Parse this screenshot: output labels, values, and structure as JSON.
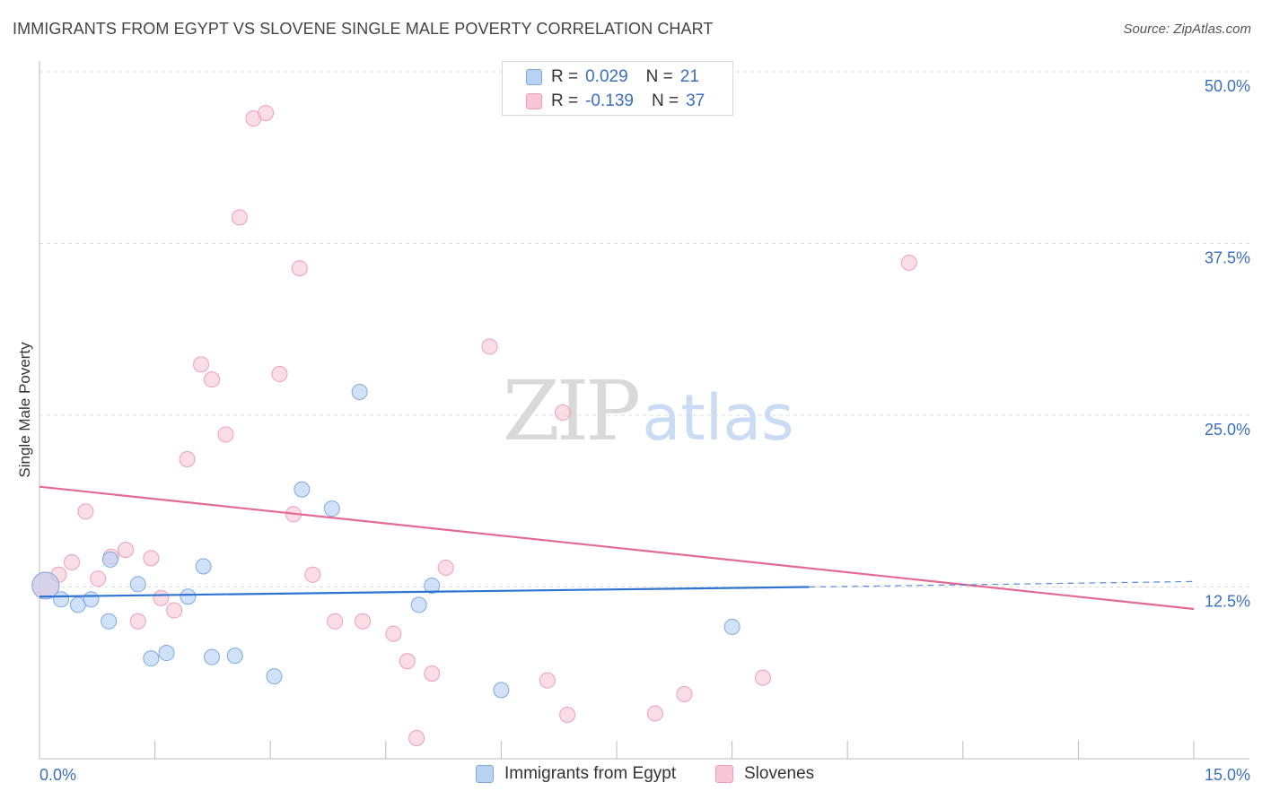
{
  "header": {
    "title": "IMMIGRANTS FROM EGYPT VS SLOVENE SINGLE MALE POVERTY CORRELATION CHART",
    "source": "Source: ZipAtlas.com"
  },
  "legend_top": {
    "rows": [
      {
        "r_label": "R =",
        "r_value": "0.029",
        "n_label": "N =",
        "n_value": "21"
      },
      {
        "r_label": "R =",
        "r_value": "-0.139",
        "n_label": "N =",
        "n_value": "37"
      }
    ]
  },
  "legend_bottom": {
    "items": [
      "Immigrants from Egypt",
      "Slovenes"
    ]
  },
  "watermark": {
    "zip": "ZIP",
    "atlas": "atlas"
  },
  "colors": {
    "egypt_fill": "#b8d2f4",
    "egypt_stroke": "#7fa9e0",
    "egypt_line": "#2f74d0",
    "slovene_fill": "#f8c6d6",
    "slovene_stroke": "#ee9fb8",
    "slovene_line": "#e46a94",
    "tick_label": "#3a6fc0",
    "grid": "#dddddd"
  },
  "chart_data": {
    "type": "scatter",
    "ylabel": "Single Male Poverty",
    "xlim": [
      0,
      15
    ],
    "ylim": [
      0,
      50
    ],
    "x_tick_labels": [
      {
        "value": 0,
        "label": "0.0%"
      },
      {
        "value": 15,
        "label": "15.0%"
      }
    ],
    "y_tick_labels": [
      {
        "value": 12.5,
        "label": "12.5%"
      },
      {
        "value": 25,
        "label": "25.0%"
      },
      {
        "value": 37.5,
        "label": "37.5%"
      },
      {
        "value": 50,
        "label": "50.0%"
      }
    ],
    "grid": true,
    "legend_placement": "top-center",
    "series": [
      {
        "name": "Immigrants from Egypt",
        "points": [
          {
            "x": 0.08,
            "y": 12.6,
            "big": true
          },
          {
            "x": 0.28,
            "y": 11.6
          },
          {
            "x": 0.5,
            "y": 11.2
          },
          {
            "x": 0.67,
            "y": 11.6
          },
          {
            "x": 0.9,
            "y": 10.0
          },
          {
            "x": 0.92,
            "y": 14.5
          },
          {
            "x": 1.28,
            "y": 12.7
          },
          {
            "x": 1.45,
            "y": 7.3
          },
          {
            "x": 1.65,
            "y": 7.7
          },
          {
            "x": 1.93,
            "y": 11.8
          },
          {
            "x": 2.13,
            "y": 14.0
          },
          {
            "x": 2.24,
            "y": 7.4
          },
          {
            "x": 2.54,
            "y": 7.5
          },
          {
            "x": 3.05,
            "y": 6.0
          },
          {
            "x": 3.41,
            "y": 19.6
          },
          {
            "x": 3.8,
            "y": 18.2
          },
          {
            "x": 4.16,
            "y": 26.7
          },
          {
            "x": 4.93,
            "y": 11.2
          },
          {
            "x": 5.1,
            "y": 12.6
          },
          {
            "x": 6.0,
            "y": 5.0
          },
          {
            "x": 9.0,
            "y": 9.6
          }
        ],
        "trend": {
          "x0": 0,
          "y0": 11.8,
          "x1": 10.0,
          "y1": 12.5,
          "dash_to_x": 15.0,
          "dash_to_y": 12.9
        }
      },
      {
        "name": "Slovenes",
        "points": [
          {
            "x": 0.08,
            "y": 12.6,
            "big": true
          },
          {
            "x": 0.25,
            "y": 13.4
          },
          {
            "x": 0.42,
            "y": 14.3
          },
          {
            "x": 0.6,
            "y": 18.0
          },
          {
            "x": 0.76,
            "y": 13.1
          },
          {
            "x": 0.93,
            "y": 14.7
          },
          {
            "x": 1.12,
            "y": 15.2
          },
          {
            "x": 1.28,
            "y": 10.0
          },
          {
            "x": 1.45,
            "y": 14.6
          },
          {
            "x": 1.58,
            "y": 11.7
          },
          {
            "x": 1.75,
            "y": 10.8
          },
          {
            "x": 1.92,
            "y": 21.8
          },
          {
            "x": 2.1,
            "y": 28.7
          },
          {
            "x": 2.24,
            "y": 27.6
          },
          {
            "x": 2.42,
            "y": 23.6
          },
          {
            "x": 2.6,
            "y": 39.4
          },
          {
            "x": 2.78,
            "y": 46.6
          },
          {
            "x": 2.94,
            "y": 47.0
          },
          {
            "x": 3.12,
            "y": 28.0
          },
          {
            "x": 3.3,
            "y": 17.8
          },
          {
            "x": 3.38,
            "y": 35.7
          },
          {
            "x": 3.55,
            "y": 13.4
          },
          {
            "x": 3.84,
            "y": 10.0
          },
          {
            "x": 4.2,
            "y": 10.0
          },
          {
            "x": 4.6,
            "y": 9.1
          },
          {
            "x": 4.78,
            "y": 7.1
          },
          {
            "x": 4.9,
            "y": 1.5
          },
          {
            "x": 5.1,
            "y": 6.2
          },
          {
            "x": 5.28,
            "y": 13.9
          },
          {
            "x": 5.85,
            "y": 30.0
          },
          {
            "x": 6.6,
            "y": 5.7
          },
          {
            "x": 6.8,
            "y": 25.2
          },
          {
            "x": 6.86,
            "y": 3.2
          },
          {
            "x": 8.0,
            "y": 3.3
          },
          {
            "x": 8.38,
            "y": 4.7
          },
          {
            "x": 9.4,
            "y": 5.9
          },
          {
            "x": 11.3,
            "y": 36.1
          }
        ],
        "trend": {
          "x0": 0,
          "y0": 19.8,
          "x1": 15.0,
          "y1": 10.9
        }
      }
    ]
  }
}
